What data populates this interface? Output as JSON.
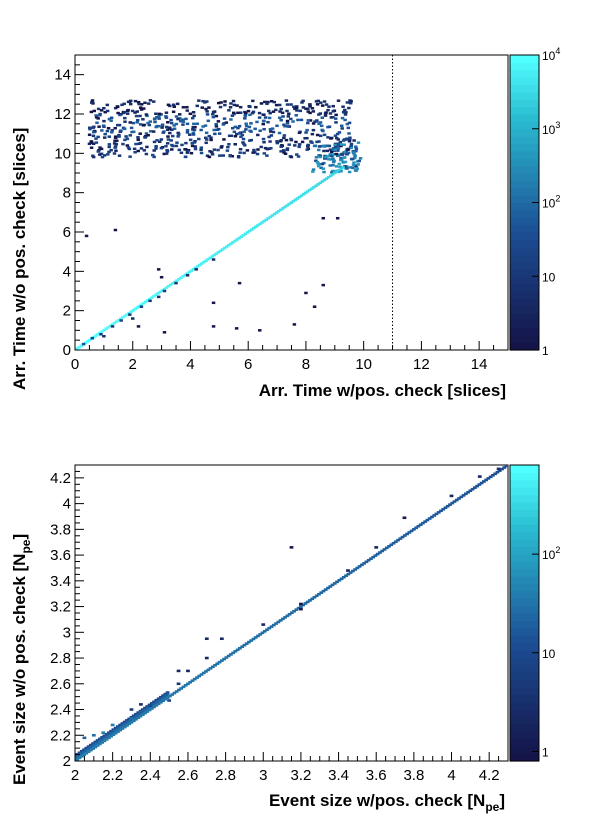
{
  "chart_data": [
    {
      "type": "heatmap",
      "xlabel": "Arr. Time w/pos. check [slices]",
      "ylabel": "Arr. Time w/o pos. check [slices]",
      "xlim": [
        0,
        15
      ],
      "ylim": [
        0,
        15
      ],
      "x_ticks": [
        "0",
        "2",
        "4",
        "6",
        "8",
        "10",
        "12",
        "14"
      ],
      "y_ticks": [
        "0",
        "2",
        "4",
        "6",
        "8",
        "10",
        "12",
        "14"
      ],
      "colorbar": {
        "scale": "log",
        "min": 1,
        "max": 10000,
        "ticks": [
          [
            "1",
            1
          ],
          [
            "10",
            10
          ],
          [
            "10",
            100,
            "2"
          ],
          [
            "10",
            1000,
            "3"
          ],
          [
            "10",
            10000,
            "4"
          ]
        ]
      },
      "reference_line": {
        "x": 11,
        "style": "dotted"
      },
      "diagonal": {
        "from": 0,
        "to": 9.3,
        "level": 10000
      },
      "bands": [
        {
          "x": [
            0.5,
            9.7
          ],
          "y": [
            11.0,
            12.0
          ],
          "level": 50
        },
        {
          "x": [
            0.5,
            9.7
          ],
          "y": [
            12.0,
            12.7
          ],
          "level": 5
        },
        {
          "x": [
            0.5,
            9.7
          ],
          "y": [
            9.8,
            11.0
          ],
          "level": 15
        },
        {
          "x": [
            8.2,
            9.9
          ],
          "y": [
            9.0,
            10.6
          ],
          "level": 300
        }
      ],
      "points": [
        [
          0.3,
          0.3,
          50
        ],
        [
          0.6,
          0.6,
          20
        ],
        [
          0.9,
          0.8,
          15
        ],
        [
          1.0,
          0.7,
          5
        ],
        [
          1.3,
          1.2,
          10
        ],
        [
          1.6,
          1.5,
          20
        ],
        [
          1.9,
          1.8,
          12
        ],
        [
          2.0,
          1.6,
          5
        ],
        [
          2.3,
          2.2,
          15
        ],
        [
          2.6,
          2.5,
          10
        ],
        [
          2.9,
          2.7,
          8
        ],
        [
          3.1,
          3.0,
          10
        ],
        [
          3.5,
          3.4,
          8
        ],
        [
          3.9,
          3.8,
          6
        ],
        [
          4.2,
          4.1,
          5
        ],
        [
          4.8,
          4.6,
          5
        ],
        [
          1.4,
          6.1,
          1
        ],
        [
          0.4,
          5.8,
          1
        ],
        [
          2.2,
          1.2,
          1
        ],
        [
          3.1,
          0.9,
          1
        ],
        [
          4.8,
          1.2,
          1
        ],
        [
          5.6,
          1.1,
          1
        ],
        [
          6.4,
          1.0,
          1
        ],
        [
          7.6,
          1.3,
          1
        ],
        [
          8.3,
          2.2,
          1
        ],
        [
          8.0,
          2.9,
          1
        ],
        [
          8.6,
          6.7,
          1
        ],
        [
          3.0,
          3.7,
          1
        ],
        [
          2.9,
          4.1,
          1
        ],
        [
          5.7,
          3.4,
          1
        ],
        [
          4.8,
          2.4,
          1
        ],
        [
          9.1,
          6.7,
          1
        ],
        [
          8.6,
          3.3,
          1
        ]
      ]
    },
    {
      "type": "heatmap",
      "xlabel": "Event size w/pos. check [N",
      "xlabel_sub": "pe",
      "xlabel_close": "]",
      "ylabel": "Event size w/o pos. check [N",
      "ylabel_sub": "pe",
      "ylabel_close": "]",
      "xlim": [
        2,
        4.3
      ],
      "ylim": [
        2,
        4.3
      ],
      "x_ticks": [
        "2",
        "2.2",
        "2.4",
        "2.6",
        "2.8",
        "3",
        "3.2",
        "3.4",
        "3.6",
        "3.8",
        "4",
        "4.2"
      ],
      "y_ticks": [
        "2",
        "2.2",
        "2.4",
        "2.6",
        "2.8",
        "3",
        "3.2",
        "3.4",
        "3.6",
        "3.8",
        "4",
        "4.2"
      ],
      "colorbar": {
        "scale": "log",
        "min": 0.8,
        "max": 800,
        "ticks": [
          [
            "1",
            1
          ],
          [
            "10",
            10
          ],
          [
            "10",
            100,
            "2"
          ]
        ]
      },
      "diagonal": {
        "from": 2,
        "to": 4.3,
        "level": 40
      },
      "points": [
        [
          2.05,
          2.18,
          20
        ],
        [
          2.1,
          2.2,
          30
        ],
        [
          2.15,
          2.22,
          40
        ],
        [
          2.2,
          2.28,
          40
        ],
        [
          2.3,
          2.33,
          30
        ],
        [
          2.35,
          2.38,
          20
        ],
        [
          2.4,
          2.43,
          10
        ],
        [
          2.5,
          2.47,
          8
        ],
        [
          2.55,
          2.6,
          5
        ],
        [
          2.6,
          2.7,
          2
        ],
        [
          2.55,
          2.7,
          2
        ],
        [
          2.7,
          2.8,
          2
        ],
        [
          2.7,
          2.95,
          2
        ],
        [
          2.78,
          2.95,
          2
        ],
        [
          3.0,
          3.06,
          2
        ],
        [
          3.2,
          3.22,
          1
        ],
        [
          3.2,
          3.18,
          1
        ],
        [
          3.15,
          3.66,
          1
        ],
        [
          3.75,
          3.89,
          1
        ],
        [
          3.45,
          3.48,
          2
        ],
        [
          3.6,
          3.66,
          2
        ],
        [
          4.0,
          4.06,
          2
        ],
        [
          4.15,
          4.21,
          2
        ],
        [
          4.25,
          4.27,
          3
        ],
        [
          2.3,
          2.4,
          5
        ],
        [
          2.35,
          2.44,
          3
        ]
      ]
    }
  ]
}
